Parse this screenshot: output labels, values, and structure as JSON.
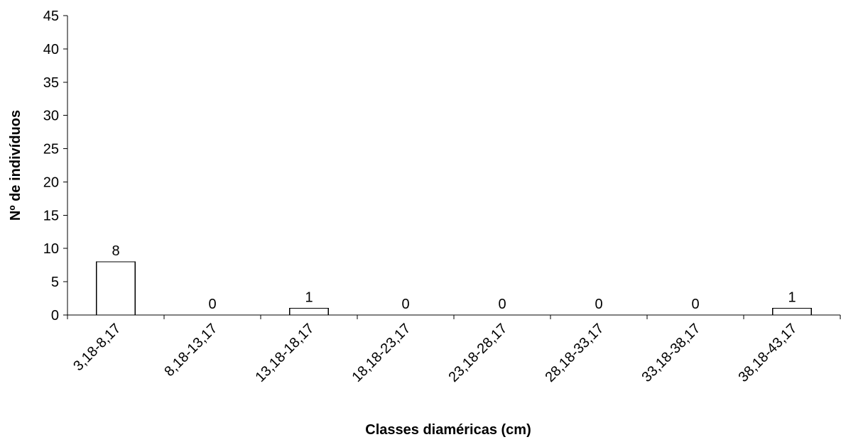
{
  "chart_data": {
    "type": "bar",
    "categories": [
      "3,18-8,17",
      "8,18-13,17",
      "13,18-18,17",
      "18,18-23,17",
      "23,18-28,17",
      "28,18-33,17",
      "33,18-38,17",
      "38,18-43,17"
    ],
    "values": [
      8,
      0,
      1,
      0,
      0,
      0,
      0,
      1
    ],
    "data_labels": [
      "8",
      "0",
      "1",
      "0",
      "0",
      "0",
      "0",
      "1"
    ],
    "title": "",
    "xlabel": "Classes diaméricas (cm)",
    "ylabel": "Nº de indivíduos",
    "ylim": [
      0,
      45
    ],
    "yticks": [
      "0",
      "5",
      "10",
      "15",
      "20",
      "25",
      "30",
      "35",
      "40",
      "45"
    ],
    "grid": false,
    "legend": "none",
    "bar_fill": "#ffffff",
    "bar_stroke": "#000000"
  }
}
